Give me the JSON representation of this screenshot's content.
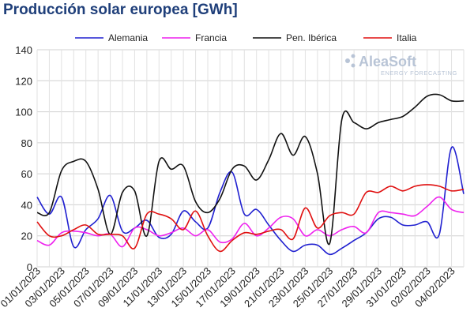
{
  "chart_data": {
    "type": "line",
    "title": "Producción solar europea [GWh]",
    "xlabel": "",
    "ylabel": "",
    "ylim": [
      0,
      140
    ],
    "yticks": [
      0,
      20,
      40,
      60,
      80,
      100,
      120,
      140
    ],
    "grid": true,
    "legend_position": "top",
    "x_tick_labels": [
      "01/01/2023",
      "03/01/2023",
      "05/01/2023",
      "07/01/2023",
      "09/01/2023",
      "11/01/2023",
      "13/01/2023",
      "15/01/2023",
      "17/01/2023",
      "19/01/2023",
      "21/01/2023",
      "23/01/2023",
      "25/01/2023",
      "27/01/2023",
      "29/01/2023",
      "31/01/2023",
      "02/02/2023",
      "04/02/2023"
    ],
    "x": [
      "01/01/2023",
      "02/01/2023",
      "03/01/2023",
      "04/01/2023",
      "05/01/2023",
      "06/01/2023",
      "07/01/2023",
      "08/01/2023",
      "09/01/2023",
      "10/01/2023",
      "11/01/2023",
      "12/01/2023",
      "13/01/2023",
      "14/01/2023",
      "15/01/2023",
      "16/01/2023",
      "17/01/2023",
      "18/01/2023",
      "19/01/2023",
      "20/01/2023",
      "21/01/2023",
      "22/01/2023",
      "23/01/2023",
      "24/01/2023",
      "25/01/2023",
      "26/01/2023",
      "27/01/2023",
      "28/01/2023",
      "29/01/2023",
      "30/01/2023",
      "31/01/2023",
      "01/02/2023",
      "02/02/2023",
      "03/02/2023",
      "04/02/2023",
      "05/02/2023"
    ],
    "series": [
      {
        "name": "Alemania",
        "color": "#2020d0",
        "values": [
          45,
          34,
          45,
          13,
          24,
          31,
          46,
          23,
          25,
          30,
          19,
          21,
          36,
          29,
          25,
          48,
          61,
          34,
          37,
          27,
          17,
          10,
          14,
          14,
          8,
          12,
          17,
          22,
          31,
          32,
          27,
          27,
          29,
          21,
          77,
          47
        ]
      },
      {
        "name": "Francia",
        "color": "#ee22ee",
        "values": [
          17,
          14,
          22,
          23,
          22,
          20,
          21,
          13,
          25,
          24,
          20,
          22,
          25,
          20,
          24,
          16,
          18,
          28,
          20,
          25,
          32,
          31,
          20,
          24,
          20,
          24,
          26,
          22,
          35,
          35,
          34,
          33,
          39,
          45,
          37,
          35
        ]
      },
      {
        "name": "Pen. Ibérica",
        "color": "#111111",
        "values": [
          35,
          35,
          62,
          68,
          68,
          50,
          21,
          48,
          49,
          20,
          68,
          63,
          65,
          42,
          35,
          44,
          63,
          65,
          56,
          69,
          86,
          72,
          84,
          60,
          15,
          95,
          93,
          89,
          93,
          95,
          97,
          103,
          110,
          111,
          107,
          107
        ]
      },
      {
        "name": "Italia",
        "color": "#e01010",
        "values": [
          29,
          20,
          20,
          24,
          27,
          21,
          21,
          20,
          12,
          34,
          34,
          31,
          24,
          36,
          20,
          10,
          17,
          22,
          21,
          23,
          24,
          18,
          38,
          25,
          33,
          35,
          34,
          48,
          48,
          52,
          49,
          52,
          53,
          52,
          49,
          50
        ]
      }
    ]
  },
  "logo": {
    "name": "AleaSoft",
    "tagline": "ENERGY FORECASTING"
  }
}
